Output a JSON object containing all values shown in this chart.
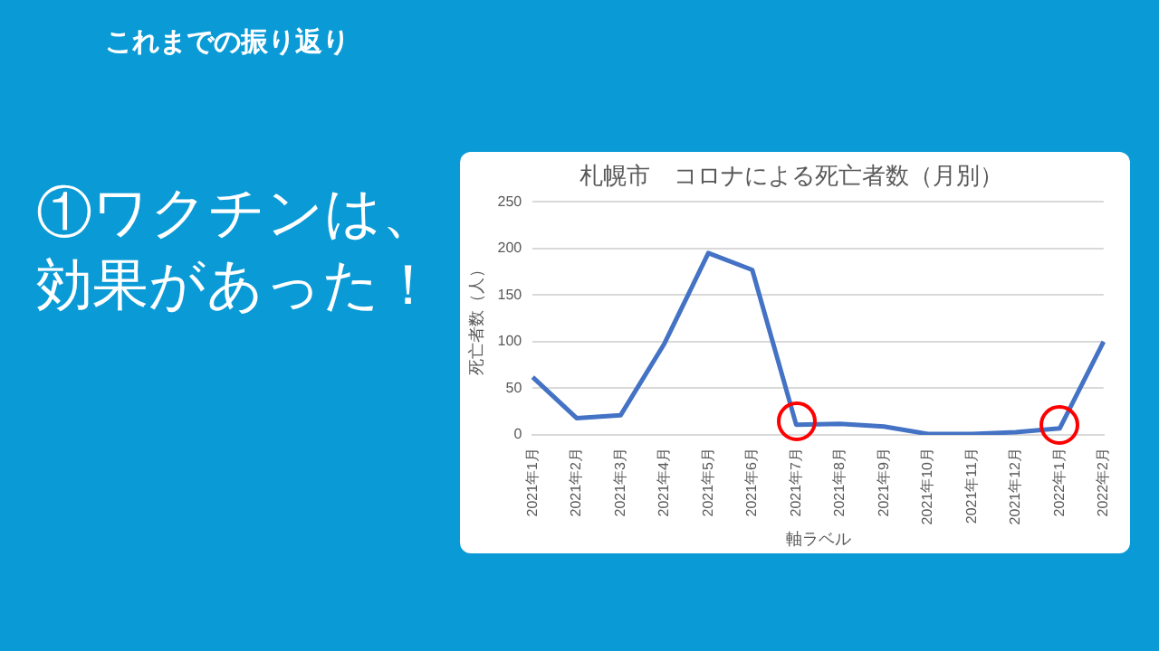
{
  "chart_data": {
    "type": "line",
    "title": "札幌市　コロナによる死亡者数（月別）",
    "xlabel": "軸ラベル",
    "ylabel": "死亡者数（人）",
    "annotations": [
      "これまでの振り返り",
      "①ワクチンは、効果があった！"
    ],
    "categories": [
      "2021年1月",
      "2021年2月",
      "2021年3月",
      "2021年4月",
      "2021年5月",
      "2021年6月",
      "2021年7月",
      "2021年8月",
      "2021年9月",
      "2021年10月",
      "2021年11月",
      "2021年12月",
      "2022年1月",
      "2022年2月"
    ],
    "series": [
      {
        "color": "#4472c4",
        "values": [
          62,
          18,
          21,
          98,
          195,
          177,
          11,
          12,
          9,
          1,
          1,
          3,
          7,
          100
        ]
      }
    ],
    "ylim": [
      0,
      250
    ],
    "yticks": [
      0,
      50,
      100,
      150,
      200,
      250
    ],
    "grid": "y",
    "legend": false,
    "marker": "none",
    "line_style": "solid"
  }
}
